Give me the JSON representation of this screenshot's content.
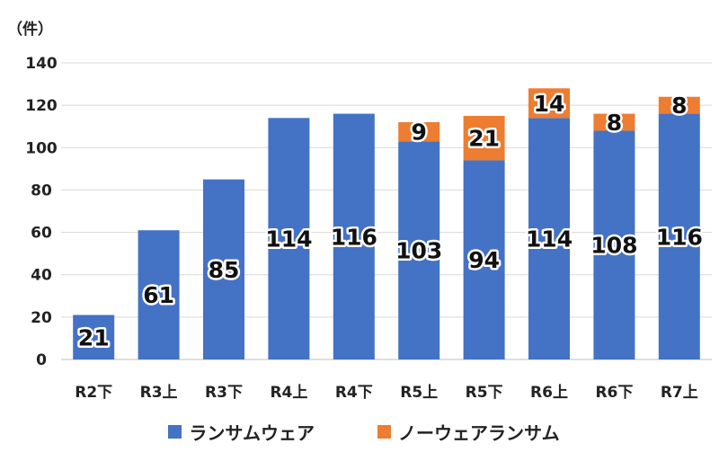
{
  "chart_data": {
    "type": "bar",
    "stacked": true,
    "unit_label": "（件）",
    "categories": [
      "R2下",
      "R3上",
      "R3下",
      "R4上",
      "R4下",
      "R5上",
      "R5下",
      "R6上",
      "R6下",
      "R7上"
    ],
    "series": [
      {
        "name": "ランサムウェア",
        "color": "#4472c4",
        "values": [
          21,
          61,
          85,
          114,
          116,
          103,
          94,
          114,
          108,
          116
        ]
      },
      {
        "name": "ノーウェアランサム",
        "color": "#ed7d31",
        "values": [
          null,
          null,
          null,
          null,
          null,
          9,
          21,
          14,
          8,
          8
        ]
      }
    ],
    "ylim": [
      0,
      140
    ],
    "yticks": [
      0,
      20,
      40,
      60,
      80,
      100,
      120,
      140
    ],
    "grid": true,
    "legend_position": "bottom"
  }
}
